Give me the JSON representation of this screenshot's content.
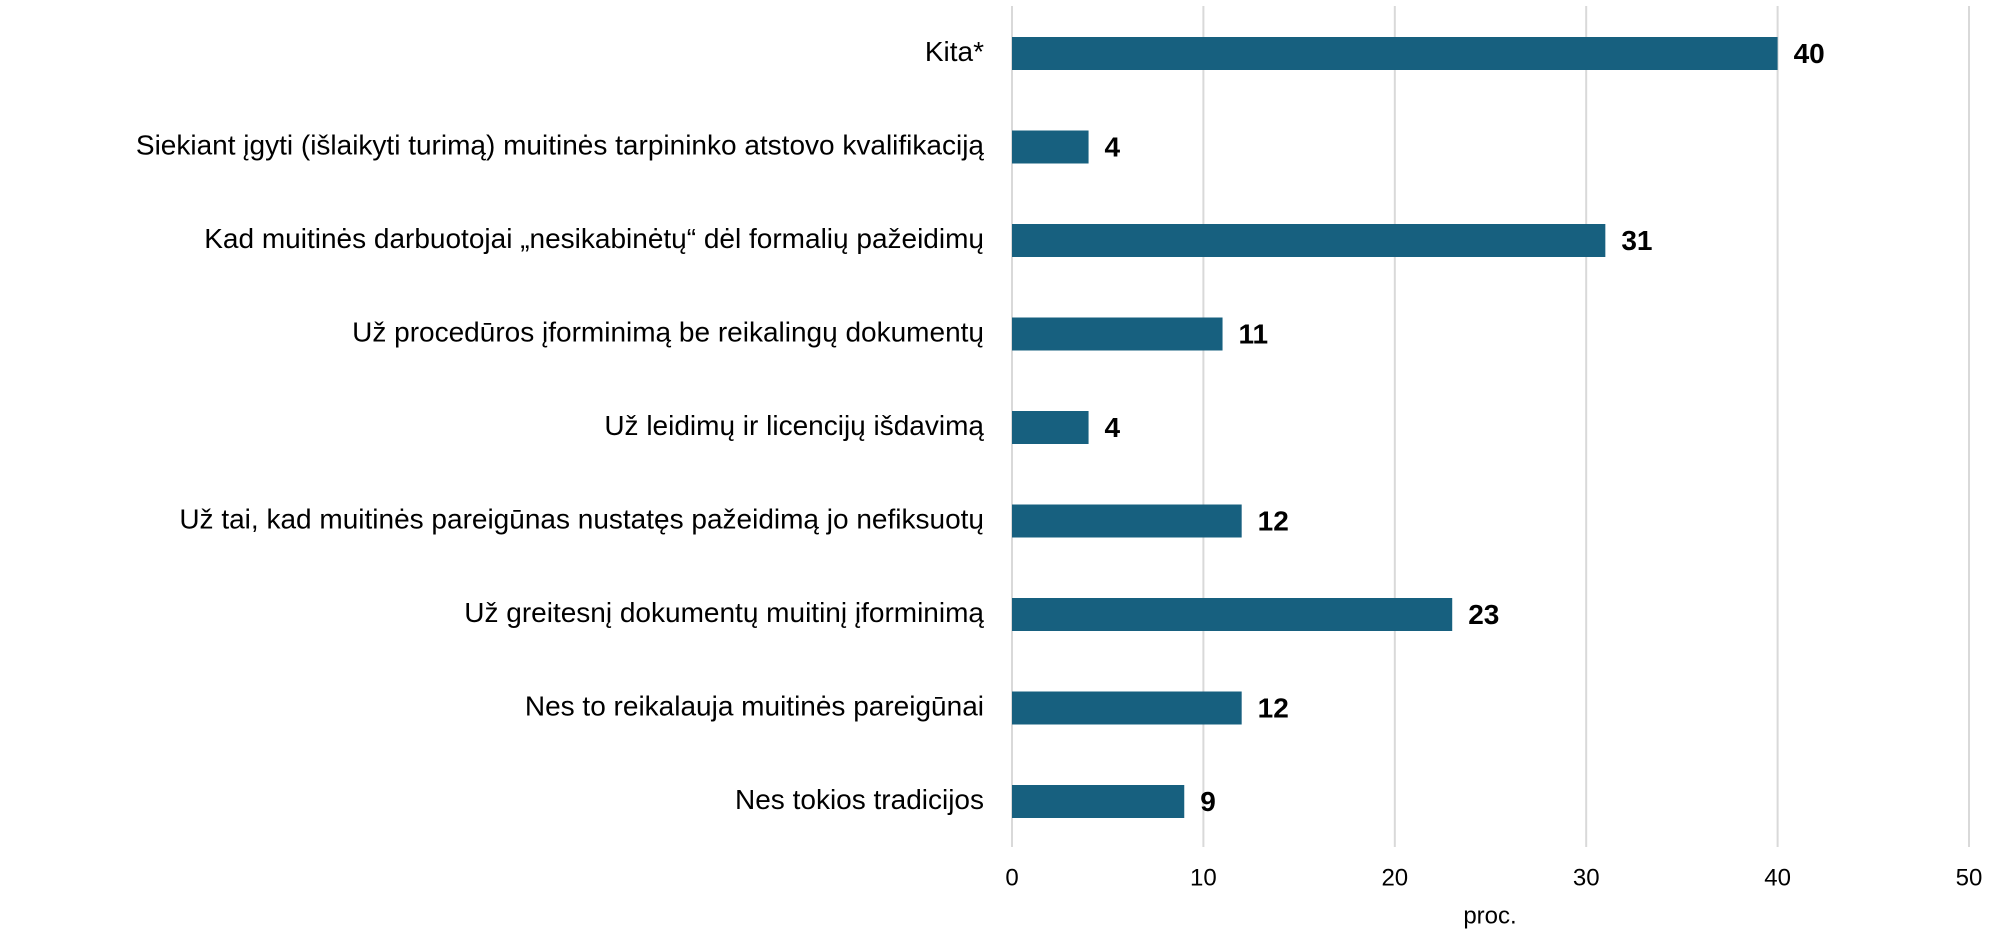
{
  "chart_data": {
    "type": "bar",
    "orientation": "horizontal",
    "categories": [
      "Kita*",
      "Siekiant įgyti (išlaikyti turimą) muitinės tarpininko atstovo kvalifikaciją",
      "Kad muitinės darbuotojai „nesikabinėtų“ dėl formalių pažeidimų",
      "Už procedūros įforminimą be reikalingų dokumentų",
      "Už leidimų ir licencijų išdavimą",
      "Už tai, kad muitinės pareigūnas nustatęs pažeidimą jo nefiksuotų",
      "Už greitesnį dokumentų muitinį įforminimą",
      "Nes to reikalauja muitinės pareigūnai",
      "Nes tokios tradicijos"
    ],
    "values": [
      40,
      4,
      31,
      11,
      4,
      12,
      23,
      12,
      9
    ],
    "color": "#17607f",
    "xlabel": "proc.",
    "xlim": [
      0,
      50
    ],
    "xticks": [
      0,
      10,
      20,
      30,
      40,
      50
    ],
    "grid": true
  }
}
